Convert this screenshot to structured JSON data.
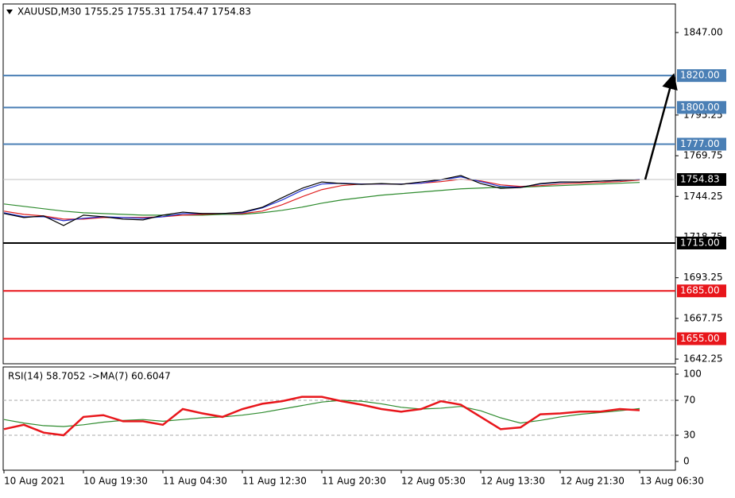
{
  "chart_data": [
    {
      "type": "line",
      "title": "XAUUSD,M30  1755.25  1755.31  1754.47  1754.83",
      "ylim": [
        1639.3,
        1864.9
      ],
      "yticks": [
        {
          "value": 1642.25,
          "label": "1642.25"
        },
        {
          "value": 1667.75,
          "label": "1667.75"
        },
        {
          "value": 1693.25,
          "label": "1693.25"
        },
        {
          "value": 1718.75,
          "label": "1718.75"
        },
        {
          "value": 1744.25,
          "label": "1744.25"
        },
        {
          "value": 1769.75,
          "label": "1769.75"
        },
        {
          "value": 1795.25,
          "label": "1795.25"
        },
        {
          "value": 1847,
          "label": "1847.00"
        }
      ],
      "series": [
        {
          "color": "#2e8b2e",
          "values": [
            1739.5,
            1738,
            1736.5,
            1735,
            1734,
            1733.5,
            1733,
            1732.5,
            1732.5,
            1732.5,
            1732.5,
            1733,
            1733,
            1734,
            1735.5,
            1737.5,
            1740,
            1742,
            1743.5,
            1745,
            1746,
            1747,
            1748,
            1749,
            1749.5,
            1750,
            1750,
            1750.5,
            1751,
            1751.5,
            1752,
            1752.5,
            1753
          ]
        },
        {
          "color": "#e02020",
          "values": [
            1735,
            1733,
            1732,
            1730,
            1730,
            1731,
            1731,
            1731,
            1731.5,
            1732.5,
            1733,
            1733.5,
            1733.5,
            1735,
            1739,
            1744,
            1748.5,
            1751,
            1752,
            1752,
            1752,
            1752.5,
            1753.5,
            1755,
            1754,
            1751.5,
            1750.5,
            1751,
            1752,
            1752.5,
            1753,
            1753.5,
            1754.5
          ]
        },
        {
          "color": "#2030d0",
          "values": [
            1734,
            1731.5,
            1731.5,
            1729,
            1730.5,
            1731.5,
            1731,
            1730.5,
            1731.5,
            1733.5,
            1733.5,
            1733.5,
            1734,
            1737,
            1742,
            1748,
            1752,
            1752.5,
            1752,
            1752,
            1752,
            1752.5,
            1754.5,
            1756.5,
            1753.5,
            1750.5,
            1750,
            1752,
            1753,
            1753.3,
            1753.8,
            1754.2,
            1755
          ]
        },
        {
          "color": "#000000",
          "values": [
            1733.5,
            1731,
            1732,
            1726,
            1732.5,
            1731.5,
            1730,
            1729.5,
            1732.5,
            1734.4,
            1733.5,
            1733.5,
            1734.4,
            1737.4,
            1743.4,
            1749.3,
            1753.3,
            1752.3,
            1751.8,
            1752.3,
            1751.8,
            1753.3,
            1754.8,
            1757.3,
            1752.3,
            1749.3,
            1749.8,
            1752.3,
            1753.3,
            1753.3,
            1753.8,
            1754.3,
            1754.8
          ]
        }
      ],
      "levels": [
        {
          "value": 1820,
          "label": "1820.00",
          "color": "#4a7fb5",
          "text_color": "#ffffff",
          "width": 2
        },
        {
          "value": 1800,
          "label": "1800.00",
          "color": "#4a7fb5",
          "text_color": "#ffffff",
          "width": 2
        },
        {
          "value": 1777,
          "label": "1777.00",
          "color": "#4a7fb5",
          "text_color": "#ffffff",
          "width": 2
        },
        {
          "value": 1754.83,
          "label": "1754.83",
          "color": "#000000",
          "line_color": "#c0c0c0",
          "text_color": "#ffffff",
          "width": 1
        },
        {
          "value": 1715,
          "label": "1715.00",
          "color": "#000000",
          "text_color": "#ffffff",
          "width": 2
        },
        {
          "value": 1685,
          "label": "1685.00",
          "color": "#e8161b",
          "text_color": "#ffffff",
          "width": 2
        },
        {
          "value": 1655,
          "label": "1655.00",
          "color": "#e8161b",
          "text_color": "#ffffff",
          "width": 2
        }
      ]
    },
    {
      "type": "line",
      "title": "RSI(14) 58.7052  ->MA(7) 60.6047",
      "ylim": [
        -10,
        108.2
      ],
      "yticks": [
        0,
        30,
        70,
        100
      ],
      "dashed_levels": [
        30,
        70
      ],
      "categories": [
        "10 Aug 2021",
        null,
        null,
        null,
        "10 Aug 19:30",
        null,
        null,
        null,
        "11 Aug 04:30",
        null,
        null,
        null,
        "11 Aug 12:30",
        null,
        null,
        null,
        "11 Aug 20:30",
        null,
        null,
        null,
        "12 Aug 05:30",
        null,
        null,
        null,
        "12 Aug 13:30",
        null,
        null,
        null,
        "12 Aug 21:30",
        null,
        null,
        null,
        "13 Aug 06:30"
      ],
      "series": [
        {
          "color": "#2e8b2e",
          "values": [
            48,
            44,
            41,
            40,
            42,
            45,
            47,
            48,
            46,
            48,
            50,
            51,
            53,
            56,
            60,
            64,
            68,
            70,
            69,
            66,
            62,
            60,
            61,
            63,
            58,
            50,
            44,
            47,
            51,
            54,
            56,
            58,
            60.6
          ]
        },
        {
          "color": "#e8161b",
          "values": [
            37,
            42,
            33,
            30,
            51,
            53,
            46,
            46,
            42,
            60,
            55,
            51,
            60,
            66,
            69,
            74,
            74,
            69,
            65,
            60,
            57,
            60,
            69,
            65,
            51,
            37,
            39,
            54,
            55,
            57,
            57,
            60,
            58.7
          ]
        }
      ]
    }
  ]
}
